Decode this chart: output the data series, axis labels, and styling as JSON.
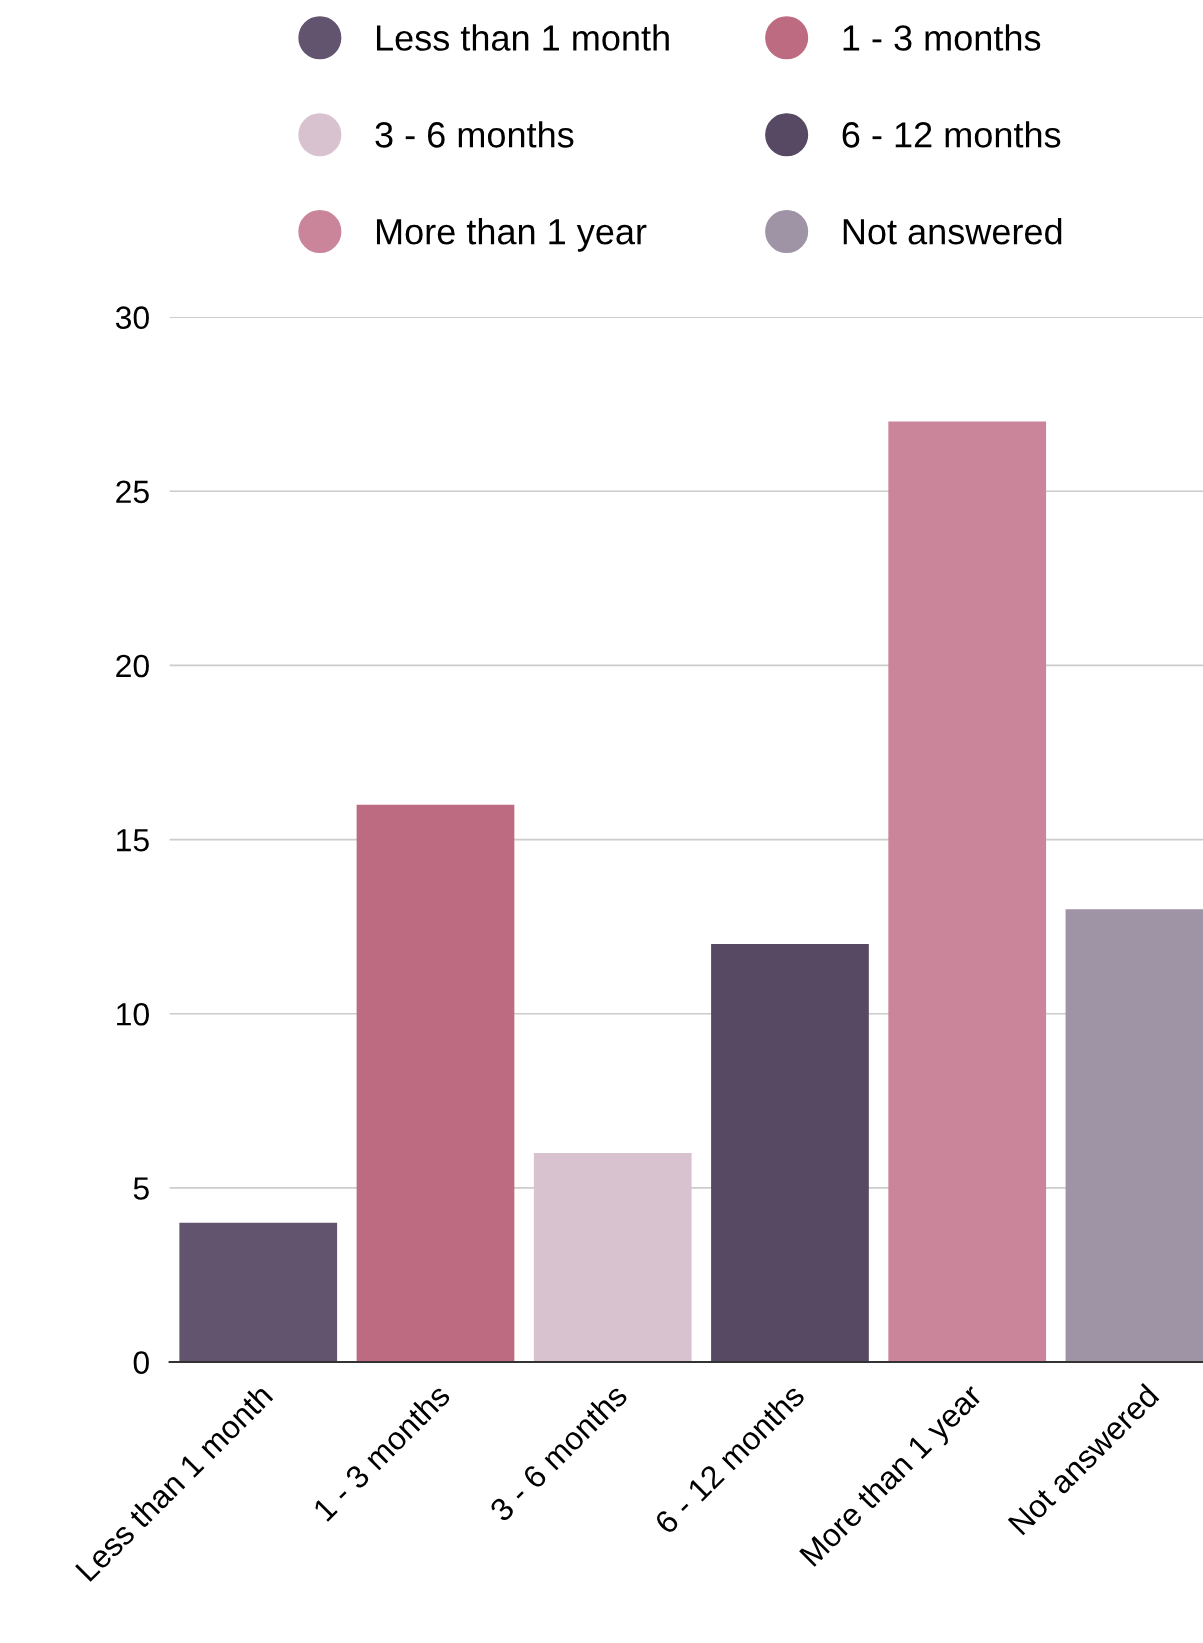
{
  "chart_data": {
    "type": "bar",
    "categories": [
      "Less than 1 month",
      "1 - 3 months",
      "3 - 6 months",
      "6 - 12 months",
      "More than 1 year",
      "Not answered"
    ],
    "series": [
      {
        "name": "Less than 1 month",
        "color": "#62546f",
        "values": [
          4,
          null,
          null,
          null,
          null,
          null
        ]
      },
      {
        "name": "1 - 3 months",
        "color": "#bd6b80",
        "values": [
          null,
          16,
          null,
          null,
          null,
          null
        ]
      },
      {
        "name": "3 - 6 months",
        "color": "#d9c2cf",
        "values": [
          null,
          null,
          6,
          null,
          null,
          null
        ]
      },
      {
        "name": "6 - 12 months",
        "color": "#574963",
        "values": [
          null,
          null,
          null,
          12,
          null,
          null
        ]
      },
      {
        "name": "More than 1 year",
        "color": "#ca859a",
        "values": [
          null,
          null,
          null,
          null,
          27,
          null
        ]
      },
      {
        "name": "Not answered",
        "color": "#9f93a6",
        "values": [
          null,
          null,
          null,
          null,
          null,
          13
        ]
      }
    ],
    "ylim": [
      0,
      30
    ],
    "yticks": [
      0,
      5,
      10,
      15,
      20,
      25,
      30
    ],
    "grid": "y",
    "legend": "top"
  }
}
